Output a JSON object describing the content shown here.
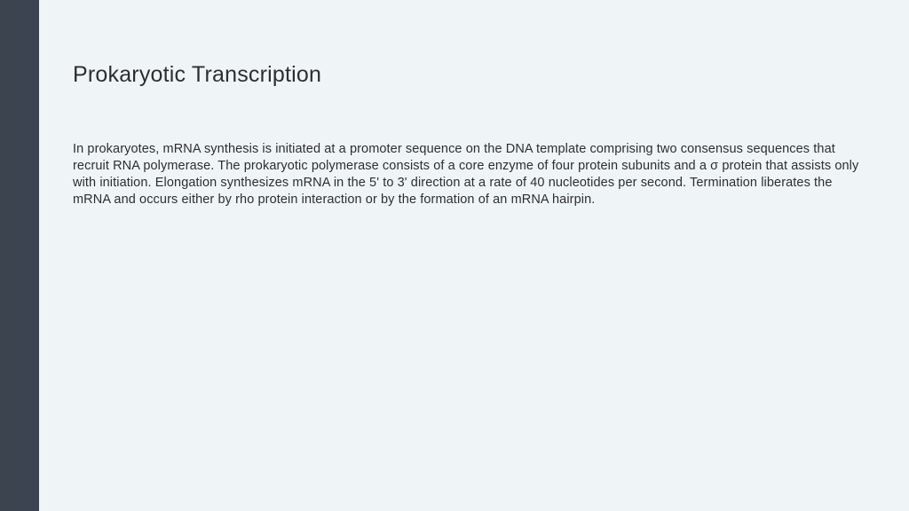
{
  "slide": {
    "title": "Prokaryotic Transcription",
    "body": "In prokaryotes, mRNA synthesis is initiated at a promoter sequence on the DNA template comprising two consensus sequences that recruit RNA polymerase. The prokaryotic polymerase consists of a core enzyme of four protein subunits and a σ protein that assists only with initiation. Elongation synthesizes mRNA in the 5' to 3' direction at a rate of 40 nucleotides per second. Termination liberates the mRNA and occurs either by rho protein interaction or by the formation of an mRNA hairpin."
  },
  "colors": {
    "background": "#eff5f7",
    "sidebar": "#3c454f",
    "text": "#2e2e2e"
  }
}
